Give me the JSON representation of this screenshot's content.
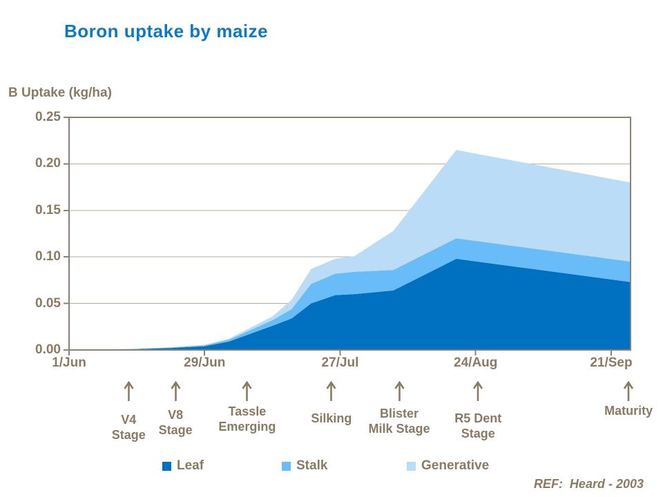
{
  "header": {
    "title": "Boron uptake by maize"
  },
  "colors": {
    "title_blue": "#0e78c8",
    "text_tan": "#8a7a62",
    "axis": "#8c8170",
    "gridline": "#b5ab9c"
  },
  "chart_data": {
    "type": "area",
    "stacked": true,
    "title": "Boron uptake by maize",
    "ylabel": "B Uptake (kg/ha)",
    "xlabel": "",
    "ylim": [
      0,
      0.25
    ],
    "xlim_days": [
      0,
      116
    ],
    "grid": "horizontal",
    "legend_position": "bottom",
    "x_ticks": [
      {
        "day": 0,
        "label": "1/Jun"
      },
      {
        "day": 28,
        "label": "29/Jun"
      },
      {
        "day": 56,
        "label": "27/Jul"
      },
      {
        "day": 84,
        "label": "24/Aug"
      },
      {
        "day": 112,
        "label": "21/Sep"
      }
    ],
    "y_ticks": [
      {
        "value": 0.0,
        "label": "0.00"
      },
      {
        "value": 0.05,
        "label": "0.05"
      },
      {
        "value": 0.1,
        "label": "0.10"
      },
      {
        "value": 0.15,
        "label": "0.15"
      },
      {
        "value": 0.2,
        "label": "0.20"
      },
      {
        "value": 0.25,
        "label": "0.25"
      }
    ],
    "x_days": [
      0,
      7,
      14,
      21,
      28,
      33,
      42,
      46,
      50,
      55,
      59,
      67,
      80,
      116
    ],
    "series": [
      {
        "name": "Leaf",
        "color": "#0070c0",
        "values": [
          0,
          0.0003,
          0.001,
          0.002,
          0.004,
          0.009,
          0.026,
          0.034,
          0.05,
          0.059,
          0.06,
          0.064,
          0.098,
          0.073
        ]
      },
      {
        "name": "Stalk",
        "color": "#68bdf8",
        "values": [
          0,
          0.0001,
          0.0003,
          0.0007,
          0.001,
          0.002,
          0.006,
          0.01,
          0.021,
          0.023,
          0.024,
          0.022,
          0.022,
          0.022
        ]
      },
      {
        "name": "Generative",
        "color": "#badcf7",
        "values": [
          0,
          0.0,
          0.0001,
          0.0003,
          0.0005,
          0.001,
          0.004,
          0.01,
          0.016,
          0.016,
          0.017,
          0.042,
          0.095,
          0.085
        ]
      }
    ],
    "annotations": [
      {
        "day": 12.3,
        "label_lines": [
          "V4",
          "Stage"
        ],
        "label_dy": 13
      },
      {
        "day": 22.0,
        "label_lines": [
          "V8",
          "Stage"
        ],
        "label_dy": 6
      },
      {
        "day": 36.8,
        "label_lines": [
          "Tassle",
          "Emerging"
        ],
        "label_dy": 1
      },
      {
        "day": 54.2,
        "label_lines": [
          "Silking"
        ],
        "label_dy": 11
      },
      {
        "day": 68.2,
        "label_lines": [
          "Blister",
          "Milk Stage"
        ],
        "label_dy": 4
      },
      {
        "day": 84.5,
        "label_lines": [
          "R5 Dent",
          "Stage"
        ],
        "label_dy": 11
      },
      {
        "day": 115.6,
        "label_lines": [
          "Maturity"
        ],
        "label_dy": 0
      }
    ]
  },
  "footer": {
    "reference": "REF:  Heard - 2003"
  }
}
